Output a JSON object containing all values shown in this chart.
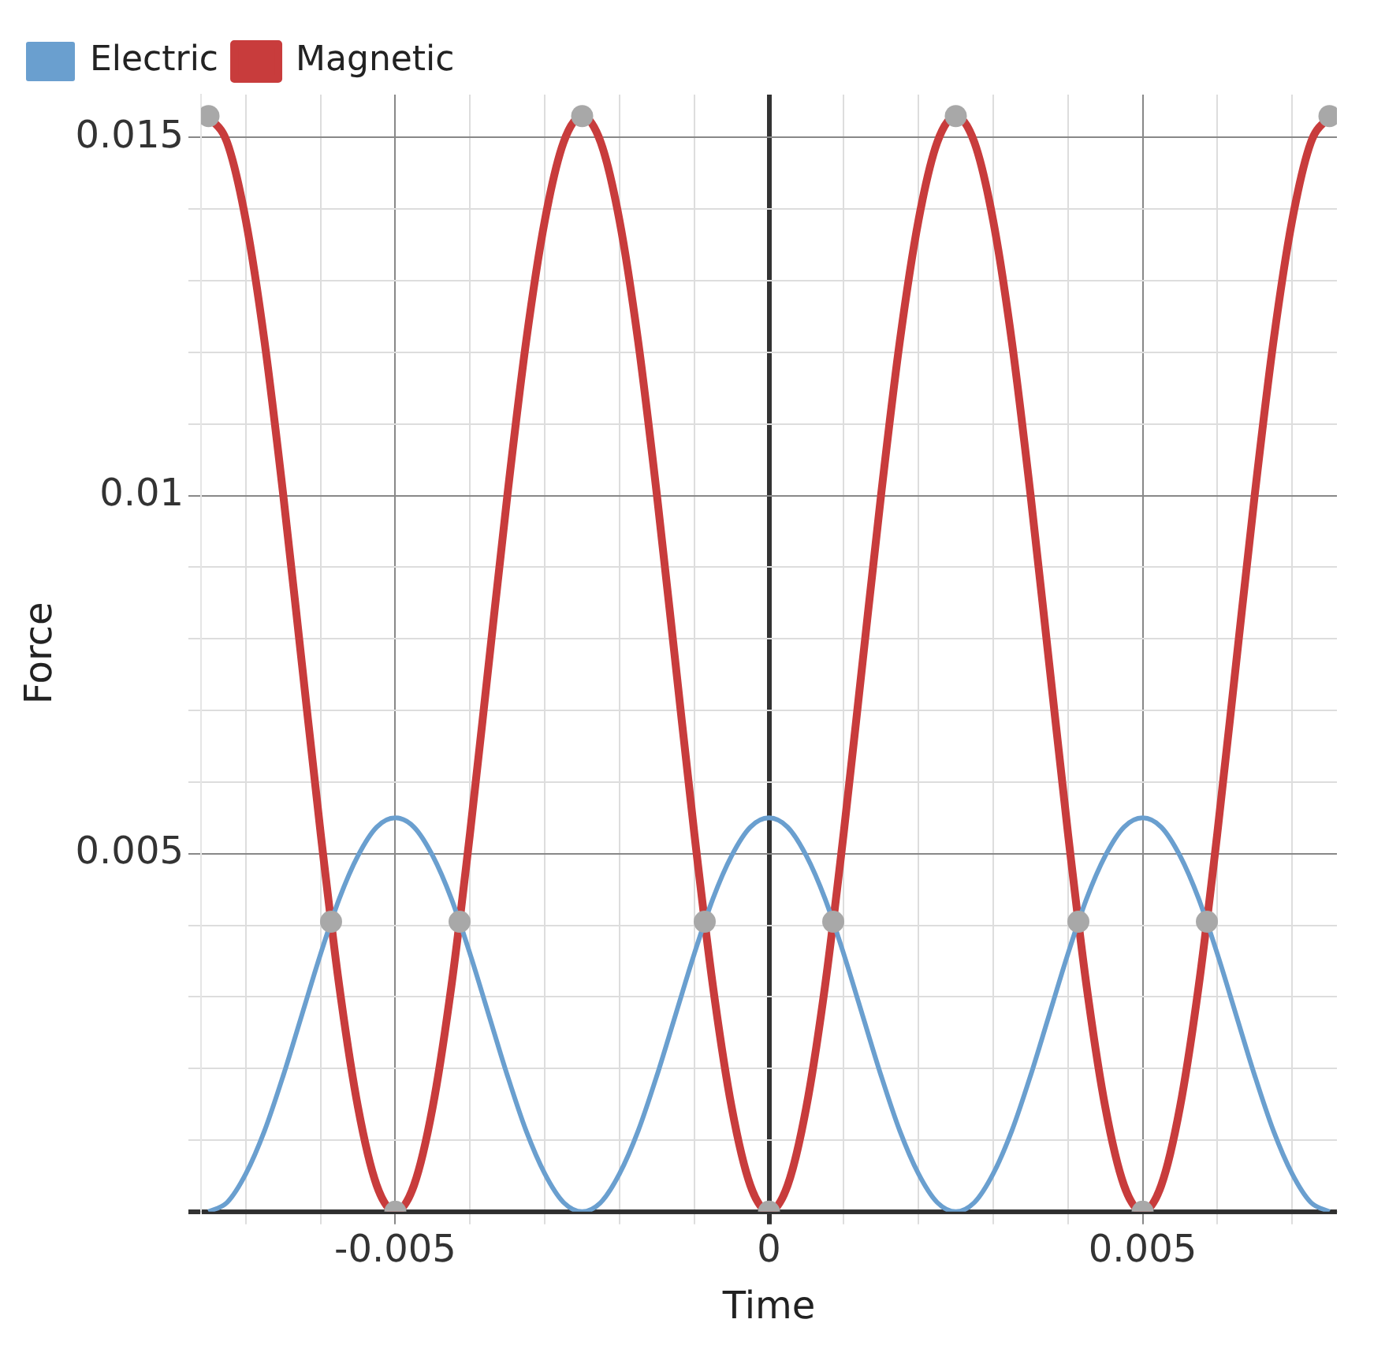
{
  "chart_data": {
    "type": "line",
    "xlabel": "Time",
    "ylabel": "Force",
    "xlim": [
      -0.0076,
      0.0076
    ],
    "ylim": [
      0,
      0.0156
    ],
    "xticks": [
      {
        "value": -0.007,
        "label": null
      },
      {
        "value": -0.006,
        "label": null
      },
      -0.005,
      {
        "value": -0.004,
        "label": null
      },
      {
        "value": -0.003,
        "label": null
      },
      {
        "value": -0.002,
        "label": null
      },
      {
        "value": -0.001,
        "label": null
      },
      0,
      {
        "value": 0.001,
        "label": null
      },
      {
        "value": 0.002,
        "label": null
      },
      {
        "value": 0.003,
        "label": null
      },
      {
        "value": 0.004,
        "label": null
      },
      0.005,
      {
        "value": 0.006,
        "label": null
      },
      {
        "value": 0.007,
        "label": null
      }
    ],
    "yticks": [
      {
        "value": 0,
        "label": null
      },
      {
        "value": 0.001,
        "label": null
      },
      {
        "value": 0.002,
        "label": null
      },
      {
        "value": 0.003,
        "label": null
      },
      {
        "value": 0.004,
        "label": null
      },
      0.005,
      {
        "value": 0.006,
        "label": null
      },
      {
        "value": 0.007,
        "label": null
      },
      {
        "value": 0.008,
        "label": null
      },
      {
        "value": 0.009,
        "label": null
      },
      0.01,
      {
        "value": 0.011,
        "label": null
      },
      {
        "value": 0.012,
        "label": null
      },
      {
        "value": 0.013,
        "label": null
      },
      {
        "value": 0.014,
        "label": null
      },
      0.015
    ],
    "grid": true,
    "legend": "top left",
    "marker": "none",
    "line_style": "solid",
    "x": [
      -0.0075,
      -0.00725,
      -0.007,
      -0.00675,
      -0.0065,
      -0.00625,
      -0.006,
      -0.00575,
      -0.0055,
      -0.00525,
      -0.005,
      -0.00475,
      -0.0045,
      -0.00425,
      -0.004,
      -0.00375,
      -0.0035,
      -0.00325,
      -0.003,
      -0.00275,
      -0.0025,
      -0.00225,
      -0.002,
      -0.00175,
      -0.0015,
      -0.00125,
      -0.001,
      -0.00075,
      -0.0005,
      -0.00025,
      0,
      0.00025,
      0.0005,
      0.00075,
      0.001,
      0.00125,
      0.0015,
      0.00175,
      0.002,
      0.00225,
      0.0025,
      0.00275,
      0.003,
      0.00325,
      0.0035,
      0.00375,
      0.004,
      0.00425,
      0.0045,
      0.00475,
      0.005,
      0.00525,
      0.0055,
      0.00575,
      0.006,
      0.00625,
      0.0065,
      0.00675,
      0.007,
      0.00725,
      0.0075
    ],
    "series": [
      {
        "name": "Electric",
        "color": "#6a9fcf",
        "values": [
          0,
          0.00013,
          0.00053,
          0.00113,
          0.0019,
          0.00275,
          0.0036,
          0.00437,
          0.00497,
          0.00537,
          0.0055,
          0.00537,
          0.00497,
          0.00437,
          0.0036,
          0.00275,
          0.0019,
          0.00113,
          0.00053,
          0.00013,
          0,
          0.00013,
          0.00053,
          0.00113,
          0.0019,
          0.00275,
          0.0036,
          0.00437,
          0.00497,
          0.00537,
          0.0055,
          0.00537,
          0.00497,
          0.00437,
          0.0036,
          0.00275,
          0.0019,
          0.00113,
          0.00053,
          0.00013,
          0,
          0.00013,
          0.00053,
          0.00113,
          0.0019,
          0.00275,
          0.0036,
          0.00437,
          0.00497,
          0.00537,
          0.0055,
          0.00537,
          0.00497,
          0.00437,
          0.0036,
          0.00275,
          0.0019,
          0.00113,
          0.00053,
          0.00013,
          0
        ]
      },
      {
        "name": "Magnetic",
        "color": "#c83c3c",
        "values": [
          0.0153,
          0.01493,
          0.01384,
          0.01215,
          0.01001,
          0.00765,
          0.00529,
          0.00315,
          0.00146,
          0.00037,
          0,
          0.00037,
          0.00146,
          0.00315,
          0.00529,
          0.00765,
          0.01001,
          0.01215,
          0.01384,
          0.01493,
          0.0153,
          0.01493,
          0.01384,
          0.01215,
          0.01001,
          0.00765,
          0.00529,
          0.00315,
          0.00146,
          0.00037,
          0,
          0.00037,
          0.00146,
          0.00315,
          0.00529,
          0.00765,
          0.01001,
          0.01215,
          0.01384,
          0.01493,
          0.0153,
          0.01493,
          0.01384,
          0.01215,
          0.01001,
          0.00765,
          0.00529,
          0.00315,
          0.00146,
          0.00037,
          0,
          0.00037,
          0.00146,
          0.00315,
          0.00529,
          0.00765,
          0.01001,
          0.01215,
          0.01384,
          0.01493,
          0.0153
        ]
      },
      {
        "type": "scatter",
        "marker": "circle",
        "color": "#a8a8a8",
        "x": [
          -0.0075,
          -0.0025,
          0.0025,
          0.0075,
          -0.005,
          0,
          0.005,
          -0.00586,
          -0.00414,
          -0.00086,
          0.00086,
          0.00414,
          0.00586
        ],
        "values": [
          0.0153,
          0.0153,
          0.0153,
          0.0153,
          0,
          0,
          0,
          0.00405,
          0.00405,
          0.00405,
          0.00405,
          0.00405,
          0.00405
        ]
      }
    ]
  }
}
